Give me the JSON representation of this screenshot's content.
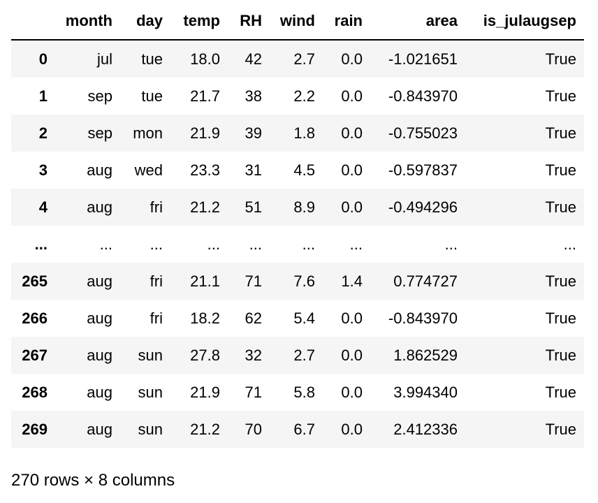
{
  "table": {
    "index_header": "",
    "columns": [
      "month",
      "day",
      "temp",
      "RH",
      "wind",
      "rain",
      "area",
      "is_julaugsep"
    ],
    "rows": [
      {
        "index": "0",
        "cells": [
          "jul",
          "tue",
          "18.0",
          "42",
          "2.7",
          "0.0",
          "-1.021651",
          "True"
        ]
      },
      {
        "index": "1",
        "cells": [
          "sep",
          "tue",
          "21.7",
          "38",
          "2.2",
          "0.0",
          "-0.843970",
          "True"
        ]
      },
      {
        "index": "2",
        "cells": [
          "sep",
          "mon",
          "21.9",
          "39",
          "1.8",
          "0.0",
          "-0.755023",
          "True"
        ]
      },
      {
        "index": "3",
        "cells": [
          "aug",
          "wed",
          "23.3",
          "31",
          "4.5",
          "0.0",
          "-0.597837",
          "True"
        ]
      },
      {
        "index": "4",
        "cells": [
          "aug",
          "fri",
          "21.2",
          "51",
          "8.9",
          "0.0",
          "-0.494296",
          "True"
        ]
      },
      {
        "index": "...",
        "cells": [
          "...",
          "...",
          "...",
          "...",
          "...",
          "...",
          "...",
          "..."
        ]
      },
      {
        "index": "265",
        "cells": [
          "aug",
          "fri",
          "21.1",
          "71",
          "7.6",
          "1.4",
          "0.774727",
          "True"
        ]
      },
      {
        "index": "266",
        "cells": [
          "aug",
          "fri",
          "18.2",
          "62",
          "5.4",
          "0.0",
          "-0.843970",
          "True"
        ]
      },
      {
        "index": "267",
        "cells": [
          "aug",
          "sun",
          "27.8",
          "32",
          "2.7",
          "0.0",
          "1.862529",
          "True"
        ]
      },
      {
        "index": "268",
        "cells": [
          "aug",
          "sun",
          "21.9",
          "71",
          "5.8",
          "0.0",
          "3.994340",
          "True"
        ]
      },
      {
        "index": "269",
        "cells": [
          "aug",
          "sun",
          "21.2",
          "70",
          "6.7",
          "0.0",
          "2.412336",
          "True"
        ]
      }
    ]
  },
  "footer": {
    "shape_text": "270 rows × 8 columns"
  }
}
